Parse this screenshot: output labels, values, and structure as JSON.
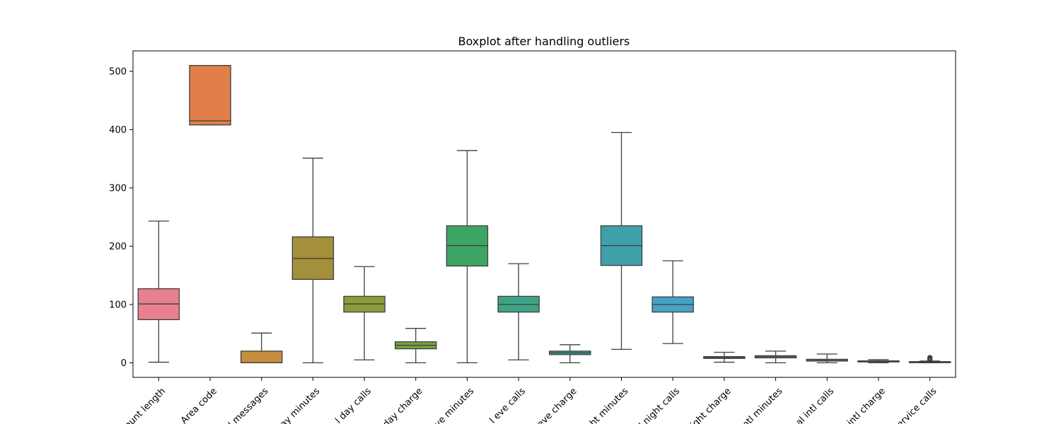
{
  "chart_data": {
    "type": "box",
    "title": "Boxplot after handling outliers",
    "xlabel": "",
    "ylabel": "",
    "ylim": [
      -25,
      535
    ],
    "yticks": [
      0,
      100,
      200,
      300,
      400,
      500
    ],
    "grid": false,
    "legend": "none",
    "categories": [
      "Account length",
      "Area code",
      "Number vmail messages",
      "Total day minutes",
      "Total day calls",
      "Total day charge",
      "Total eve minutes",
      "Total eve calls",
      "Total eve charge",
      "Total night minutes",
      "Total night calls",
      "Total night charge",
      "Total intl minutes",
      "Total intl calls",
      "Total intl charge",
      "Customer service calls"
    ],
    "tick_labels_visible": [
      "ount length",
      "Area code",
      "l messages",
      "ay minutes",
      "l day calls",
      "day charge",
      "ve minutes",
      "l eve calls",
      "eve charge",
      "ht minutes",
      "l night calls",
      "ight charge",
      "ntl minutes",
      "al intl calls",
      "intl charge",
      "ervice calls"
    ],
    "boxes": [
      {
        "whisker_low": 1,
        "q1": 74,
        "median": 101,
        "q3": 127,
        "whisker_high": 243,
        "outliers": []
      },
      {
        "whisker_low": 408,
        "q1": 408,
        "median": 415,
        "q3": 510,
        "whisker_high": 510,
        "outliers": []
      },
      {
        "whisker_low": 0,
        "q1": 0,
        "median": 0,
        "q3": 20,
        "whisker_high": 51,
        "outliers": []
      },
      {
        "whisker_low": 0,
        "q1": 143,
        "median": 179,
        "q3": 216,
        "whisker_high": 351,
        "outliers": []
      },
      {
        "whisker_low": 5,
        "q1": 87,
        "median": 101,
        "q3": 114,
        "whisker_high": 165,
        "outliers": []
      },
      {
        "whisker_low": 0,
        "q1": 24,
        "median": 30,
        "q3": 36,
        "whisker_high": 59,
        "outliers": []
      },
      {
        "whisker_low": 0,
        "q1": 166,
        "median": 201,
        "q3": 235,
        "whisker_high": 364,
        "outliers": []
      },
      {
        "whisker_low": 5,
        "q1": 87,
        "median": 100,
        "q3": 114,
        "whisker_high": 170,
        "outliers": []
      },
      {
        "whisker_low": 0,
        "q1": 14,
        "median": 17,
        "q3": 20,
        "whisker_high": 31,
        "outliers": []
      },
      {
        "whisker_low": 23,
        "q1": 167,
        "median": 201,
        "q3": 235,
        "whisker_high": 395,
        "outliers": []
      },
      {
        "whisker_low": 33,
        "q1": 87,
        "median": 100,
        "q3": 113,
        "whisker_high": 175,
        "outliers": []
      },
      {
        "whisker_low": 1,
        "q1": 7.5,
        "median": 9,
        "q3": 10.6,
        "whisker_high": 18,
        "outliers": []
      },
      {
        "whisker_low": 0,
        "q1": 8.5,
        "median": 10.3,
        "q3": 12.1,
        "whisker_high": 20,
        "outliers": []
      },
      {
        "whisker_low": 0,
        "q1": 3,
        "median": 4,
        "q3": 6,
        "whisker_high": 15,
        "outliers": []
      },
      {
        "whisker_low": 0,
        "q1": 2.3,
        "median": 2.78,
        "q3": 3.27,
        "whisker_high": 5.4,
        "outliers": []
      },
      {
        "whisker_low": 0,
        "q1": 1,
        "median": 1,
        "q3": 2,
        "whisker_high": 3,
        "outliers": [
          4,
          5,
          6,
          7,
          8,
          9
        ]
      }
    ],
    "colors": [
      "#e8808f",
      "#e07f4a",
      "#c78d3e",
      "#a48f3a",
      "#8f9a3a",
      "#76a13e",
      "#3da564",
      "#3ea386",
      "#3ca199",
      "#3fa0ab",
      "#48a2c6",
      "#7f9fd6",
      "#a3a0d8",
      "#b29ad7",
      "#d190d6",
      "#e086c0"
    ]
  }
}
